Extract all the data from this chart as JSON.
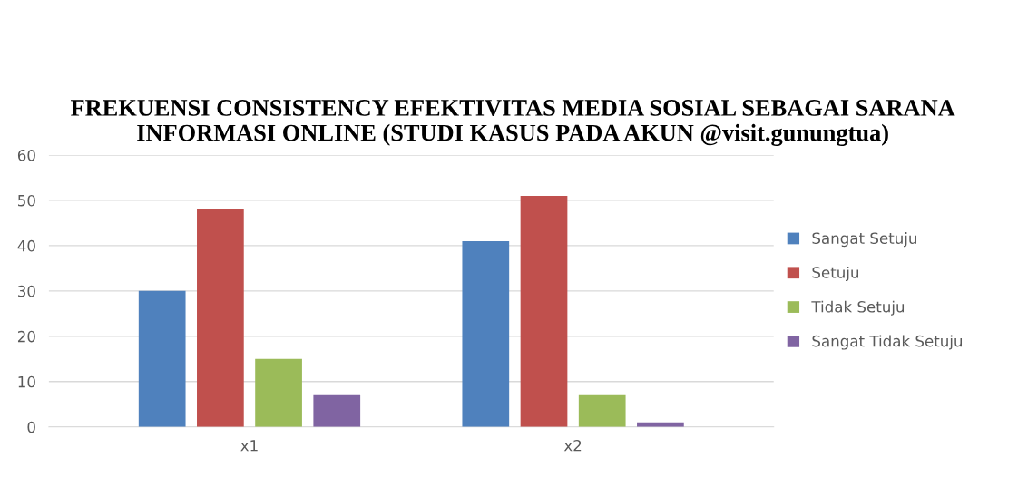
{
  "chart_data": {
    "type": "bar",
    "title": "FREKUENSI CONSISTENCY EFEKTIVITAS MEDIA SOSIAL SEBAGAI SARANA INFORMASI ONLINE (STUDI KASUS PADA AKUN @visit.gunungtua)",
    "categories": [
      "x1",
      "x2"
    ],
    "series": [
      {
        "name": "Sangat Setuju",
        "color": "#4f81bd",
        "values": [
          30,
          41
        ]
      },
      {
        "name": "Setuju",
        "color": "#c0504d",
        "values": [
          48,
          51
        ]
      },
      {
        "name": "Tidak Setuju",
        "color": "#9bbb59",
        "values": [
          15,
          7
        ]
      },
      {
        "name": "Sangat Tidak Setuju",
        "color": "#8064a2",
        "values": [
          7,
          1
        ]
      }
    ],
    "ylim": [
      0,
      60
    ],
    "yticks": [
      0,
      10,
      20,
      30,
      40,
      50,
      60
    ],
    "grid": "y",
    "legend": "right"
  }
}
